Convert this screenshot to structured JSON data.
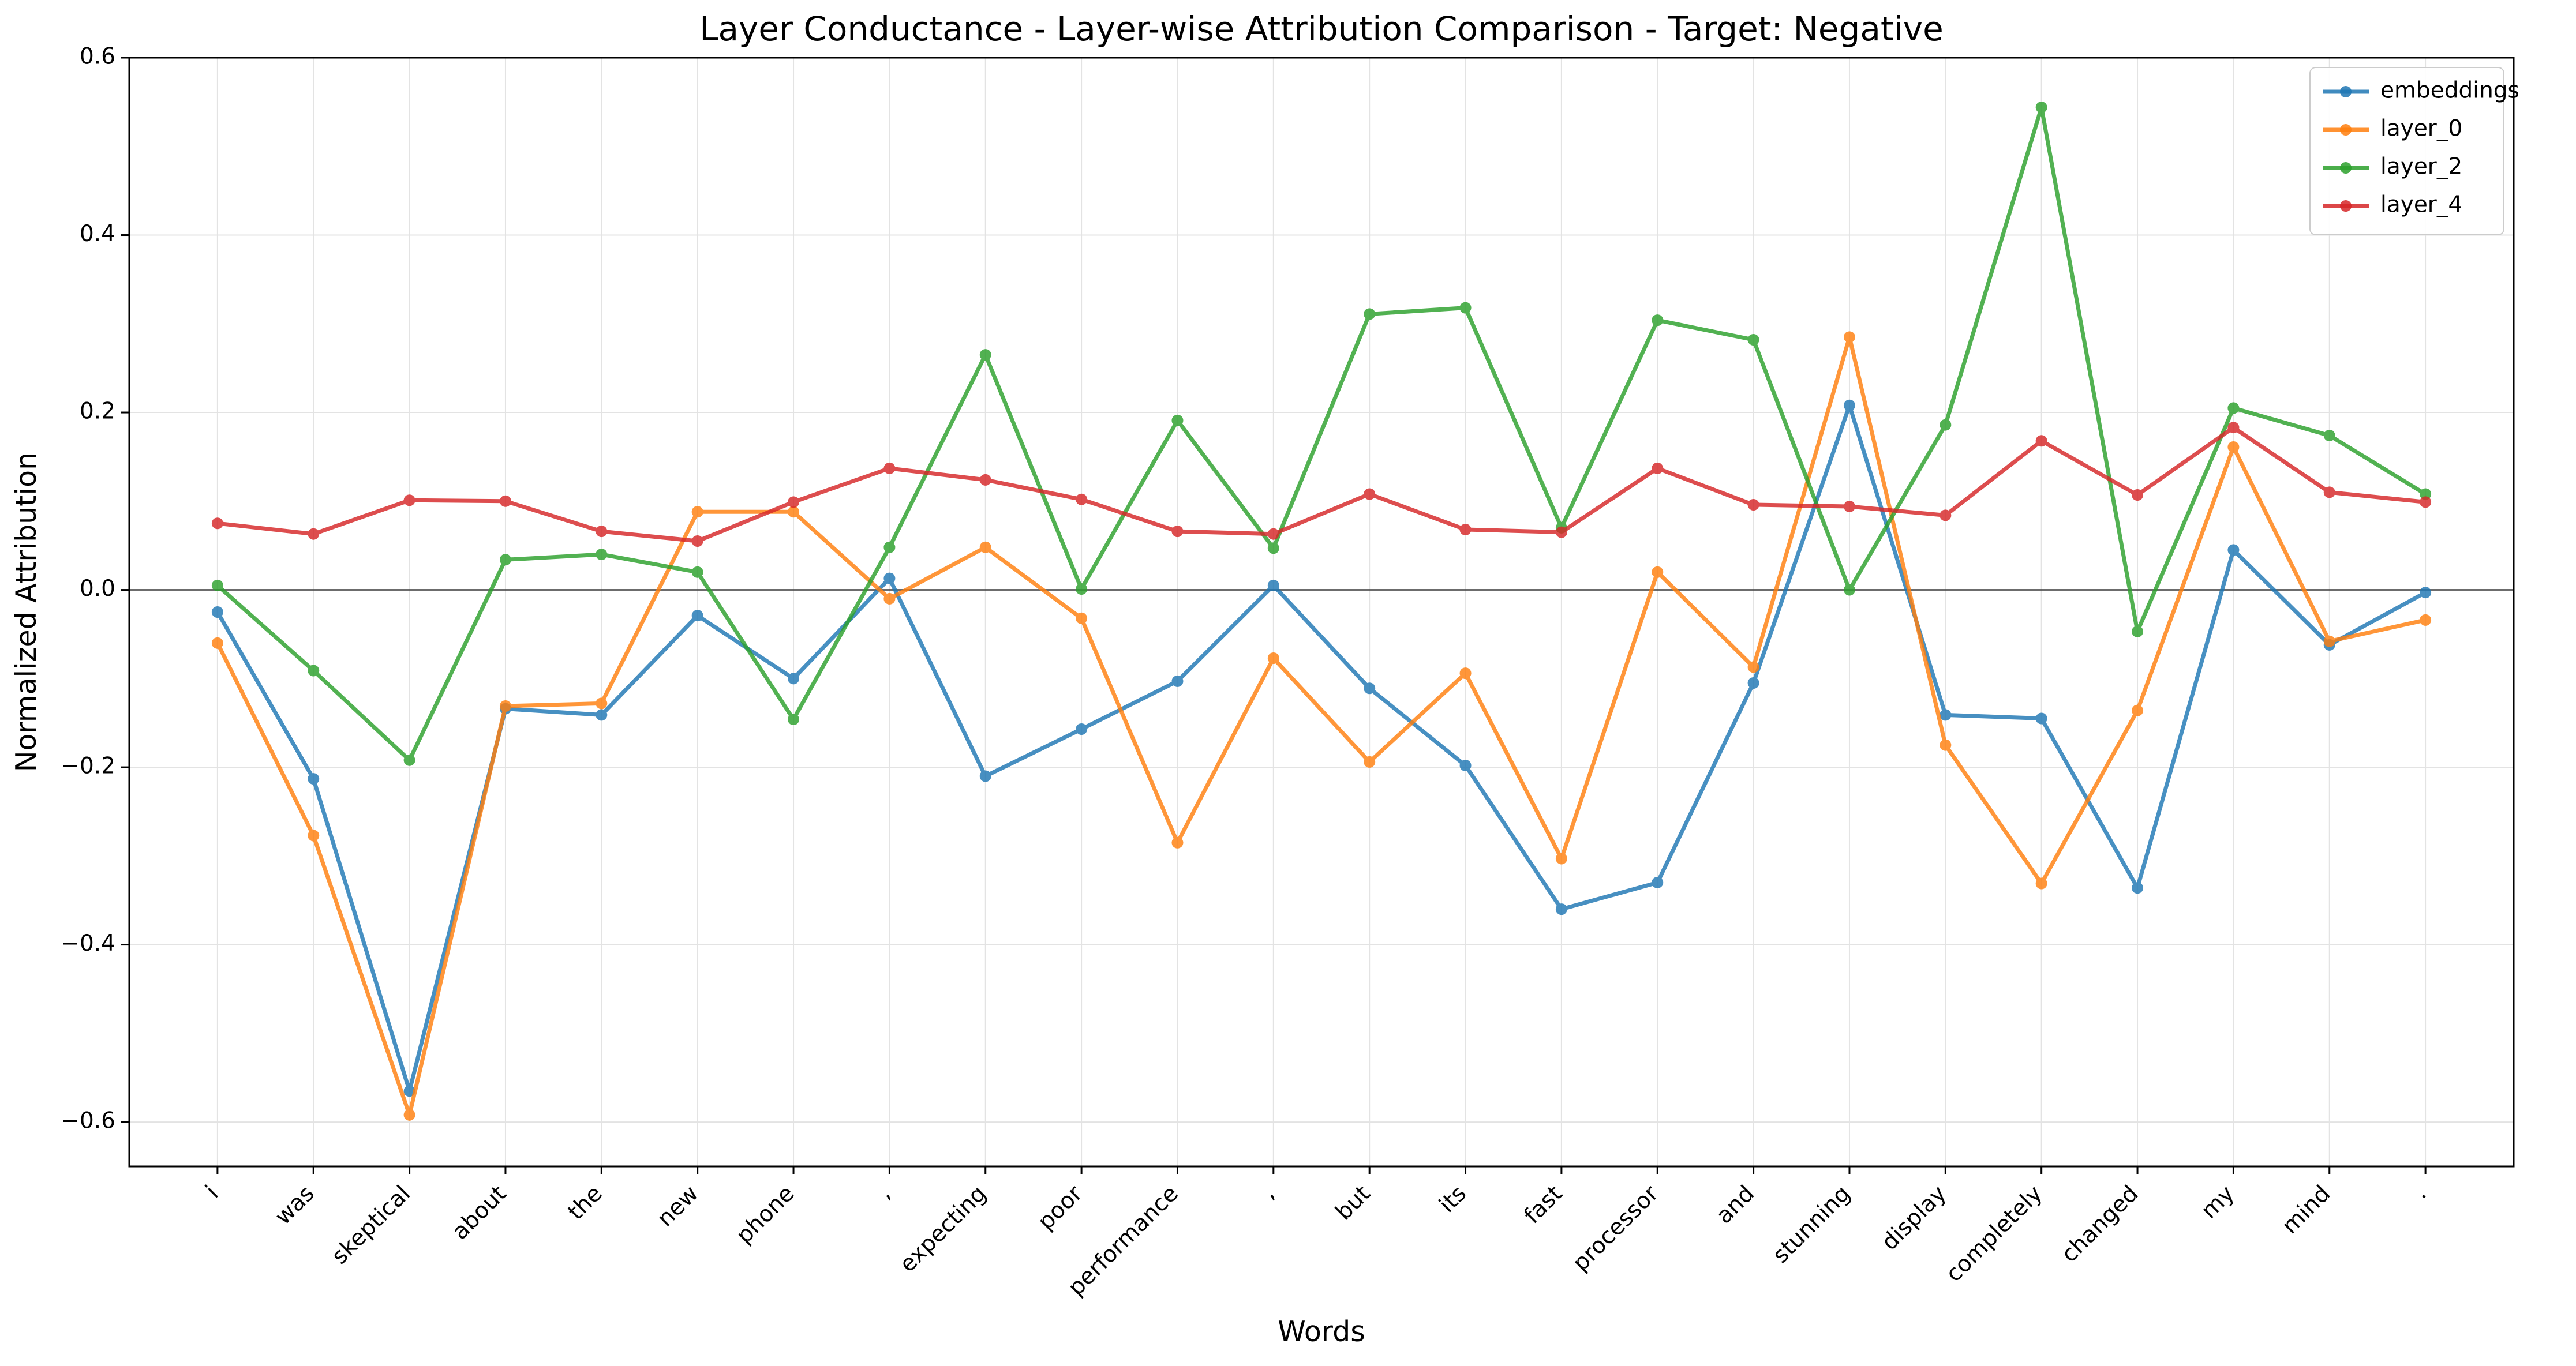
{
  "chart_data": {
    "type": "line",
    "title": "Layer Conductance - Layer-wise Attribution Comparison - Target: Negative",
    "xlabel": "Words",
    "ylabel": "Normalized Attribution",
    "ylim": [
      -0.65,
      0.6
    ],
    "yticks": [
      -0.6,
      -0.4,
      -0.2,
      0.0,
      0.2,
      0.4,
      0.6
    ],
    "ytick_labels": [
      "−0.6",
      "−0.4",
      "−0.2",
      "0.0",
      "0.2",
      "0.4",
      "0.6"
    ],
    "grid": true,
    "legend_position": "top-right",
    "categories": [
      "i",
      "was",
      "skeptical",
      "about",
      "the",
      "new",
      "phone",
      ",",
      "expecting",
      "poor",
      "performance",
      ",",
      "but",
      "its",
      "fast",
      "processor",
      "and",
      "stunning",
      "display",
      "completely",
      "changed",
      "my",
      "mind",
      "."
    ],
    "series": [
      {
        "name": "embeddings",
        "color": "#1f77b4",
        "values": [
          -0.025,
          -0.213,
          -0.565,
          -0.134,
          -0.141,
          -0.029,
          -0.1,
          0.013,
          -0.21,
          -0.157,
          -0.103,
          0.005,
          -0.111,
          -0.198,
          -0.36,
          -0.33,
          -0.105,
          0.208,
          -0.141,
          -0.145,
          -0.336,
          0.045,
          -0.062,
          -0.003
        ]
      },
      {
        "name": "layer_0",
        "color": "#ff7f0e",
        "values": [
          -0.06,
          -0.277,
          -0.592,
          -0.131,
          -0.128,
          0.088,
          0.088,
          -0.01,
          0.048,
          -0.032,
          -0.285,
          -0.077,
          -0.194,
          -0.094,
          -0.303,
          0.02,
          -0.087,
          0.285,
          -0.175,
          -0.331,
          -0.136,
          0.161,
          -0.058,
          -0.034
        ]
      },
      {
        "name": "layer_2",
        "color": "#2ca02c",
        "values": [
          0.005,
          -0.091,
          -0.192,
          0.034,
          0.04,
          0.02,
          -0.146,
          0.048,
          0.265,
          0.001,
          0.191,
          0.047,
          0.311,
          0.318,
          0.07,
          0.304,
          0.282,
          0.0,
          0.186,
          0.544,
          -0.047,
          0.205,
          0.174,
          0.108
        ]
      },
      {
        "name": "layer_4",
        "color": "#d62728",
        "values": [
          0.075,
          0.063,
          0.101,
          0.1,
          0.066,
          0.055,
          0.099,
          0.137,
          0.124,
          0.102,
          0.066,
          0.063,
          0.108,
          0.068,
          0.065,
          0.137,
          0.096,
          0.094,
          0.084,
          0.168,
          0.107,
          0.183,
          0.11,
          0.099
        ]
      }
    ]
  }
}
